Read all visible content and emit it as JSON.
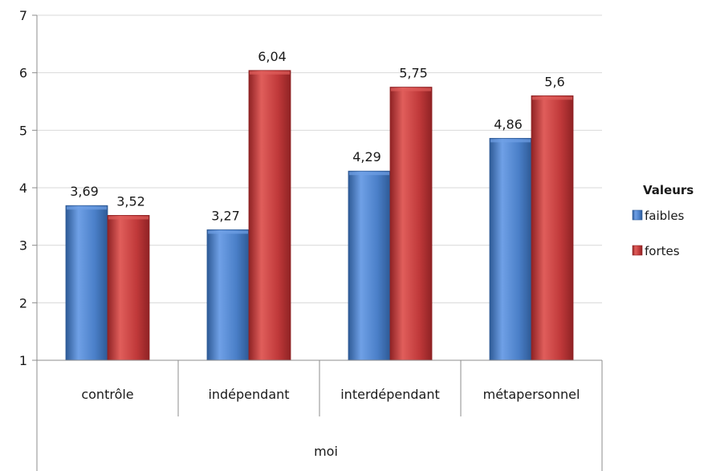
{
  "chart_data": {
    "type": "bar",
    "categories": [
      "contrôle",
      "indépendant",
      "interdépendant",
      "métapersonnel"
    ],
    "group_label": "moi",
    "legend_title": "Valeurs",
    "legend_position": "right",
    "series": [
      {
        "name": "faibles",
        "values": [
          3.69,
          3.27,
          4.29,
          4.86
        ],
        "value_labels": [
          "3,69",
          "3,27",
          "4,29",
          "4,86"
        ],
        "color": "#4a7fc8",
        "color_light": "#6fa0e6",
        "color_dark": "#2e5a96"
      },
      {
        "name": "fortes",
        "values": [
          3.52,
          6.04,
          5.75,
          5.6
        ],
        "value_labels": [
          "3,52",
          "6,04",
          "5,75",
          "5,6"
        ],
        "color": "#c0393a",
        "color_light": "#e05e5b",
        "color_dark": "#8f2224"
      }
    ],
    "yticks": [
      "1",
      "2",
      "3",
      "4",
      "5",
      "6",
      "7"
    ],
    "ylim": [
      1,
      7
    ],
    "grid": true
  }
}
